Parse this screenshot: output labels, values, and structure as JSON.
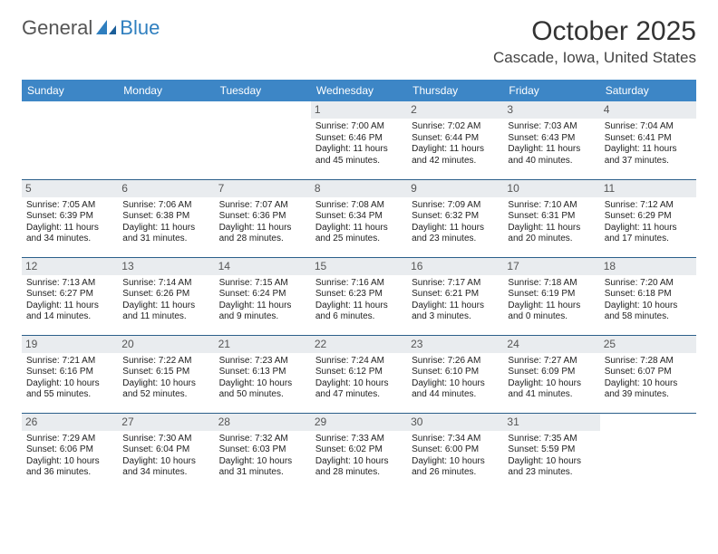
{
  "logo": {
    "text1": "General",
    "text2": "Blue"
  },
  "title": "October 2025",
  "location": "Cascade, Iowa, United States",
  "colors": {
    "header_bg": "#3d86c6",
    "header_text": "#ffffff",
    "daynum_bg": "#e9ecef",
    "grid_border": "#2b5f8a",
    "logo_accent": "#2f7fbf",
    "logo_text": "#555555"
  },
  "weekdays": [
    "Sunday",
    "Monday",
    "Tuesday",
    "Wednesday",
    "Thursday",
    "Friday",
    "Saturday"
  ],
  "weeks": [
    [
      null,
      null,
      null,
      {
        "d": "1",
        "sr": "7:00 AM",
        "ss": "6:46 PM",
        "dl": "11 hours and 45 minutes."
      },
      {
        "d": "2",
        "sr": "7:02 AM",
        "ss": "6:44 PM",
        "dl": "11 hours and 42 minutes."
      },
      {
        "d": "3",
        "sr": "7:03 AM",
        "ss": "6:43 PM",
        "dl": "11 hours and 40 minutes."
      },
      {
        "d": "4",
        "sr": "7:04 AM",
        "ss": "6:41 PM",
        "dl": "11 hours and 37 minutes."
      }
    ],
    [
      {
        "d": "5",
        "sr": "7:05 AM",
        "ss": "6:39 PM",
        "dl": "11 hours and 34 minutes."
      },
      {
        "d": "6",
        "sr": "7:06 AM",
        "ss": "6:38 PM",
        "dl": "11 hours and 31 minutes."
      },
      {
        "d": "7",
        "sr": "7:07 AM",
        "ss": "6:36 PM",
        "dl": "11 hours and 28 minutes."
      },
      {
        "d": "8",
        "sr": "7:08 AM",
        "ss": "6:34 PM",
        "dl": "11 hours and 25 minutes."
      },
      {
        "d": "9",
        "sr": "7:09 AM",
        "ss": "6:32 PM",
        "dl": "11 hours and 23 minutes."
      },
      {
        "d": "10",
        "sr": "7:10 AM",
        "ss": "6:31 PM",
        "dl": "11 hours and 20 minutes."
      },
      {
        "d": "11",
        "sr": "7:12 AM",
        "ss": "6:29 PM",
        "dl": "11 hours and 17 minutes."
      }
    ],
    [
      {
        "d": "12",
        "sr": "7:13 AM",
        "ss": "6:27 PM",
        "dl": "11 hours and 14 minutes."
      },
      {
        "d": "13",
        "sr": "7:14 AM",
        "ss": "6:26 PM",
        "dl": "11 hours and 11 minutes."
      },
      {
        "d": "14",
        "sr": "7:15 AM",
        "ss": "6:24 PM",
        "dl": "11 hours and 9 minutes."
      },
      {
        "d": "15",
        "sr": "7:16 AM",
        "ss": "6:23 PM",
        "dl": "11 hours and 6 minutes."
      },
      {
        "d": "16",
        "sr": "7:17 AM",
        "ss": "6:21 PM",
        "dl": "11 hours and 3 minutes."
      },
      {
        "d": "17",
        "sr": "7:18 AM",
        "ss": "6:19 PM",
        "dl": "11 hours and 0 minutes."
      },
      {
        "d": "18",
        "sr": "7:20 AM",
        "ss": "6:18 PM",
        "dl": "10 hours and 58 minutes."
      }
    ],
    [
      {
        "d": "19",
        "sr": "7:21 AM",
        "ss": "6:16 PM",
        "dl": "10 hours and 55 minutes."
      },
      {
        "d": "20",
        "sr": "7:22 AM",
        "ss": "6:15 PM",
        "dl": "10 hours and 52 minutes."
      },
      {
        "d": "21",
        "sr": "7:23 AM",
        "ss": "6:13 PM",
        "dl": "10 hours and 50 minutes."
      },
      {
        "d": "22",
        "sr": "7:24 AM",
        "ss": "6:12 PM",
        "dl": "10 hours and 47 minutes."
      },
      {
        "d": "23",
        "sr": "7:26 AM",
        "ss": "6:10 PM",
        "dl": "10 hours and 44 minutes."
      },
      {
        "d": "24",
        "sr": "7:27 AM",
        "ss": "6:09 PM",
        "dl": "10 hours and 41 minutes."
      },
      {
        "d": "25",
        "sr": "7:28 AM",
        "ss": "6:07 PM",
        "dl": "10 hours and 39 minutes."
      }
    ],
    [
      {
        "d": "26",
        "sr": "7:29 AM",
        "ss": "6:06 PM",
        "dl": "10 hours and 36 minutes."
      },
      {
        "d": "27",
        "sr": "7:30 AM",
        "ss": "6:04 PM",
        "dl": "10 hours and 34 minutes."
      },
      {
        "d": "28",
        "sr": "7:32 AM",
        "ss": "6:03 PM",
        "dl": "10 hours and 31 minutes."
      },
      {
        "d": "29",
        "sr": "7:33 AM",
        "ss": "6:02 PM",
        "dl": "10 hours and 28 minutes."
      },
      {
        "d": "30",
        "sr": "7:34 AM",
        "ss": "6:00 PM",
        "dl": "10 hours and 26 minutes."
      },
      {
        "d": "31",
        "sr": "7:35 AM",
        "ss": "5:59 PM",
        "dl": "10 hours and 23 minutes."
      },
      null
    ]
  ],
  "labels": {
    "sunrise": "Sunrise: ",
    "sunset": "Sunset: ",
    "daylight": "Daylight: "
  }
}
